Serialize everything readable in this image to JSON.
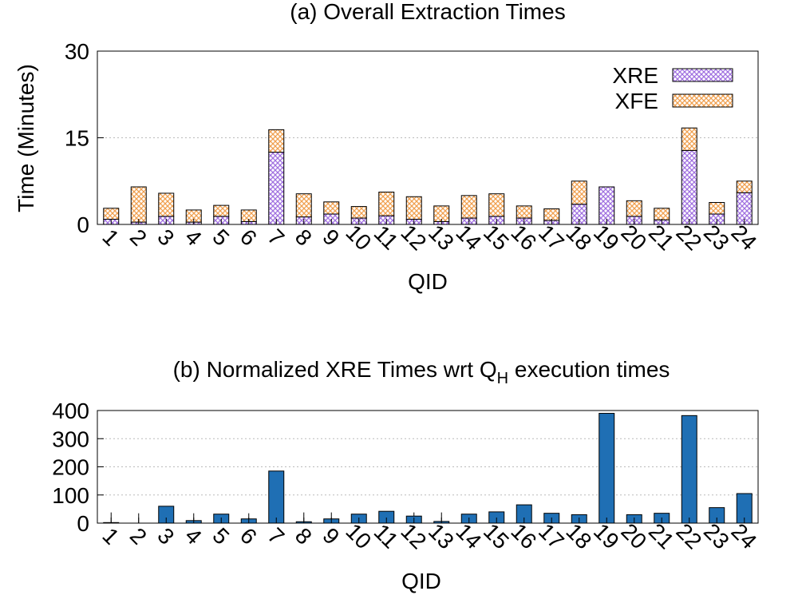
{
  "chart_data": [
    {
      "type": "bar",
      "stacked": true,
      "title": "(a) Overall Extraction Times",
      "xlabel": "QID",
      "ylabel": "Time (Minutes)",
      "ylim": [
        0,
        30
      ],
      "yticks": [
        0,
        15,
        30
      ],
      "grid": "horizontal-dotted",
      "legend_position": "top-right",
      "categories": [
        "1",
        "2",
        "3",
        "4",
        "5",
        "6",
        "7",
        "8",
        "9",
        "10",
        "11",
        "12",
        "13",
        "14",
        "15",
        "16",
        "17",
        "18",
        "19",
        "20",
        "21",
        "22",
        "23",
        "24"
      ],
      "series": [
        {
          "name": "XRE",
          "color": "#a070e0",
          "values": [
            0.9,
            0.4,
            1.4,
            0.4,
            1.4,
            0.5,
            12.5,
            1.3,
            1.8,
            1.1,
            1.5,
            0.9,
            0.5,
            1.1,
            1.4,
            1.1,
            0.7,
            3.5,
            6.5,
            1.4,
            0.8,
            12.8,
            1.8,
            5.5
          ]
        },
        {
          "name": "XFE",
          "color": "#f0a050",
          "values": [
            1.9,
            6.1,
            4.0,
            2.1,
            1.9,
            2.0,
            3.9,
            4.0,
            2.1,
            2.0,
            4.1,
            3.9,
            2.7,
            3.9,
            3.9,
            2.1,
            2.0,
            4.0,
            0.0,
            2.7,
            2.0,
            3.9,
            2.0,
            2.0
          ]
        }
      ]
    },
    {
      "type": "bar",
      "title_main": "(b) Normalized XRE Times wrt Q",
      "title_sub": "H",
      "title_tail": " execution times",
      "xlabel": "QID",
      "ylabel": "",
      "ylim": [
        0,
        400
      ],
      "yticks": [
        0,
        100,
        200,
        300,
        400
      ],
      "grid": "horizontal-dotted",
      "color": "#1f6fb4",
      "categories": [
        "1",
        "2",
        "3",
        "4",
        "5",
        "6",
        "7",
        "8",
        "9",
        "10",
        "11",
        "12",
        "13",
        "14",
        "15",
        "16",
        "17",
        "18",
        "19",
        "20",
        "21",
        "22",
        "23",
        "24"
      ],
      "values": [
        2,
        0,
        60,
        9,
        32,
        15,
        185,
        5,
        15,
        32,
        42,
        25,
        6,
        32,
        40,
        65,
        35,
        30,
        390,
        30,
        35,
        382,
        55,
        105
      ],
      "error_high": [
        38,
        35,
        0,
        35,
        0,
        35,
        0,
        38,
        38,
        0,
        0,
        38,
        38,
        0,
        0,
        0,
        0,
        0,
        0,
        0,
        0,
        0,
        0,
        0
      ]
    }
  ]
}
